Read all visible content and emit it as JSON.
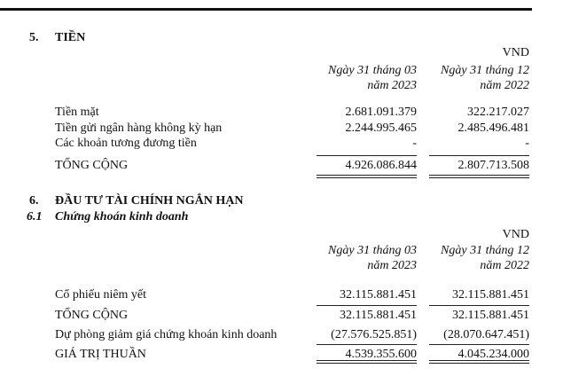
{
  "sections": [
    {
      "number": "5.",
      "title": "TIỀN",
      "unit": "VND",
      "columns": [
        [
          "Ngày 31 tháng 03",
          "năm 2023"
        ],
        [
          "Ngày 31 tháng 12",
          "năm 2022"
        ]
      ],
      "rows": [
        [
          "Tiền mặt",
          "2.681.091.379",
          "322.217.027"
        ],
        [
          "Tiền gửi ngân hàng không kỳ hạn",
          "2.244.995.465",
          "2.485.496.481"
        ],
        [
          "Các khoản tương đương tiền",
          "-",
          "-"
        ],
        [
          "TỔNG CỘNG",
          "4.926.086.844",
          "2.807.713.508"
        ]
      ]
    },
    {
      "number": "6.",
      "title": "ĐẦU TƯ TÀI CHÍNH NGẮN HẠN",
      "subsection": {
        "number": "6.1",
        "title": "Chứng khoán kinh doanh"
      },
      "unit": "VND",
      "columns": [
        [
          "Ngày 31 tháng 03",
          "năm 2023"
        ],
        [
          "Ngày 31 tháng 12",
          "năm 2022"
        ]
      ],
      "rows": [
        [
          "Cổ phiếu niêm yết",
          "32.115.881.451",
          "32.115.881.451"
        ],
        [
          "TỔNG CỘNG",
          "32.115.881.451",
          "32.115.881.451"
        ],
        [
          "Dự phòng giảm giá chứng khoán kinh doanh",
          "(27.576.525.851)",
          "(28.070.647.451)"
        ],
        [
          "GIÁ TRỊ THUẦN",
          "4.539.355.600",
          "4.045.234.000"
        ]
      ]
    }
  ]
}
